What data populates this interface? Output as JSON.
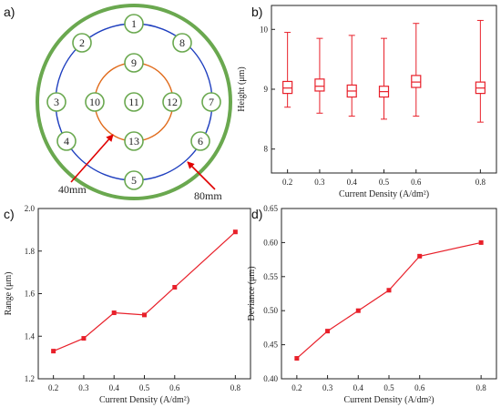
{
  "panels": {
    "a": {
      "letter": "a)"
    },
    "b": {
      "letter": "b)"
    },
    "c": {
      "letter": "c)"
    },
    "d": {
      "letter": "d)"
    }
  },
  "diagram": {
    "points": [
      {
        "id": "1",
        "ring": "outer"
      },
      {
        "id": "2",
        "ring": "outer"
      },
      {
        "id": "3",
        "ring": "outer"
      },
      {
        "id": "4",
        "ring": "outer"
      },
      {
        "id": "5",
        "ring": "outer"
      },
      {
        "id": "6",
        "ring": "outer"
      },
      {
        "id": "7",
        "ring": "outer"
      },
      {
        "id": "8",
        "ring": "outer"
      },
      {
        "id": "9",
        "ring": "inner"
      },
      {
        "id": "10",
        "ring": "inner"
      },
      {
        "id": "11",
        "ring": "center"
      },
      {
        "id": "12",
        "ring": "inner"
      },
      {
        "id": "13",
        "ring": "inner"
      }
    ],
    "inner_label": "40mm",
    "outer_label": "80mm",
    "colors": {
      "wafer": "#6aa84f",
      "outer_ring": "#1f3fbf",
      "inner_ring": "#e06a1a",
      "arrow": "#e00000",
      "point": "#6aa84f"
    }
  },
  "chart_data": [
    {
      "panel": "b",
      "type": "box",
      "x": [
        0.2,
        0.3,
        0.4,
        0.5,
        0.6,
        0.8
      ],
      "boxes": [
        {
          "min": 8.7,
          "q1": 8.93,
          "median": 9.02,
          "q3": 9.13,
          "max": 9.95
        },
        {
          "min": 8.6,
          "q1": 8.97,
          "median": 9.05,
          "q3": 9.17,
          "max": 9.85
        },
        {
          "min": 8.55,
          "q1": 8.87,
          "median": 8.97,
          "q3": 9.07,
          "max": 9.9
        },
        {
          "min": 8.5,
          "q1": 8.87,
          "median": 8.96,
          "q3": 9.05,
          "max": 9.85
        },
        {
          "min": 8.55,
          "q1": 9.03,
          "median": 9.12,
          "q3": 9.23,
          "max": 10.1
        },
        {
          "min": 8.45,
          "q1": 8.93,
          "median": 9.02,
          "q3": 9.12,
          "max": 10.15
        }
      ],
      "xlabel": "Current Density (A/dm²)",
      "ylabel": "Height (μm)",
      "xticks": [
        "0.2",
        "0.3",
        "0.4",
        "0.5",
        "0.6",
        "0.8"
      ],
      "yticks": [
        "8",
        "9",
        "10"
      ],
      "ylim": [
        7.6,
        10.4
      ],
      "color": "#e8202a"
    },
    {
      "panel": "c",
      "type": "line",
      "x": [
        0.2,
        0.3,
        0.4,
        0.5,
        0.6,
        0.8
      ],
      "values": [
        1.33,
        1.39,
        1.51,
        1.5,
        1.63,
        1.89
      ],
      "xlabel": "Current Density (A/dm²)",
      "ylabel": "Range (μm)",
      "xticks": [
        "0.2",
        "0.3",
        "0.4",
        "0.5",
        "0.6",
        "0.8"
      ],
      "yticks": [
        "1.2",
        "1.4",
        "1.6",
        "1.8",
        "2.0"
      ],
      "ylim": [
        1.2,
        2.0
      ],
      "color": "#e8202a"
    },
    {
      "panel": "d",
      "type": "line",
      "x": [
        0.2,
        0.3,
        0.4,
        0.5,
        0.6,
        0.8
      ],
      "values": [
        0.43,
        0.47,
        0.5,
        0.53,
        0.58,
        0.6
      ],
      "xlabel": "Current Density (A/dm²)",
      "ylabel": "Deviance (μm)",
      "xticks": [
        "0.2",
        "0.3",
        "0.4",
        "0.5",
        "0.6",
        "0.8"
      ],
      "yticks": [
        "0.40",
        "0.45",
        "0.50",
        "0.55",
        "0.60",
        "0.65"
      ],
      "ylim": [
        0.4,
        0.65
      ],
      "color": "#e8202a"
    }
  ]
}
